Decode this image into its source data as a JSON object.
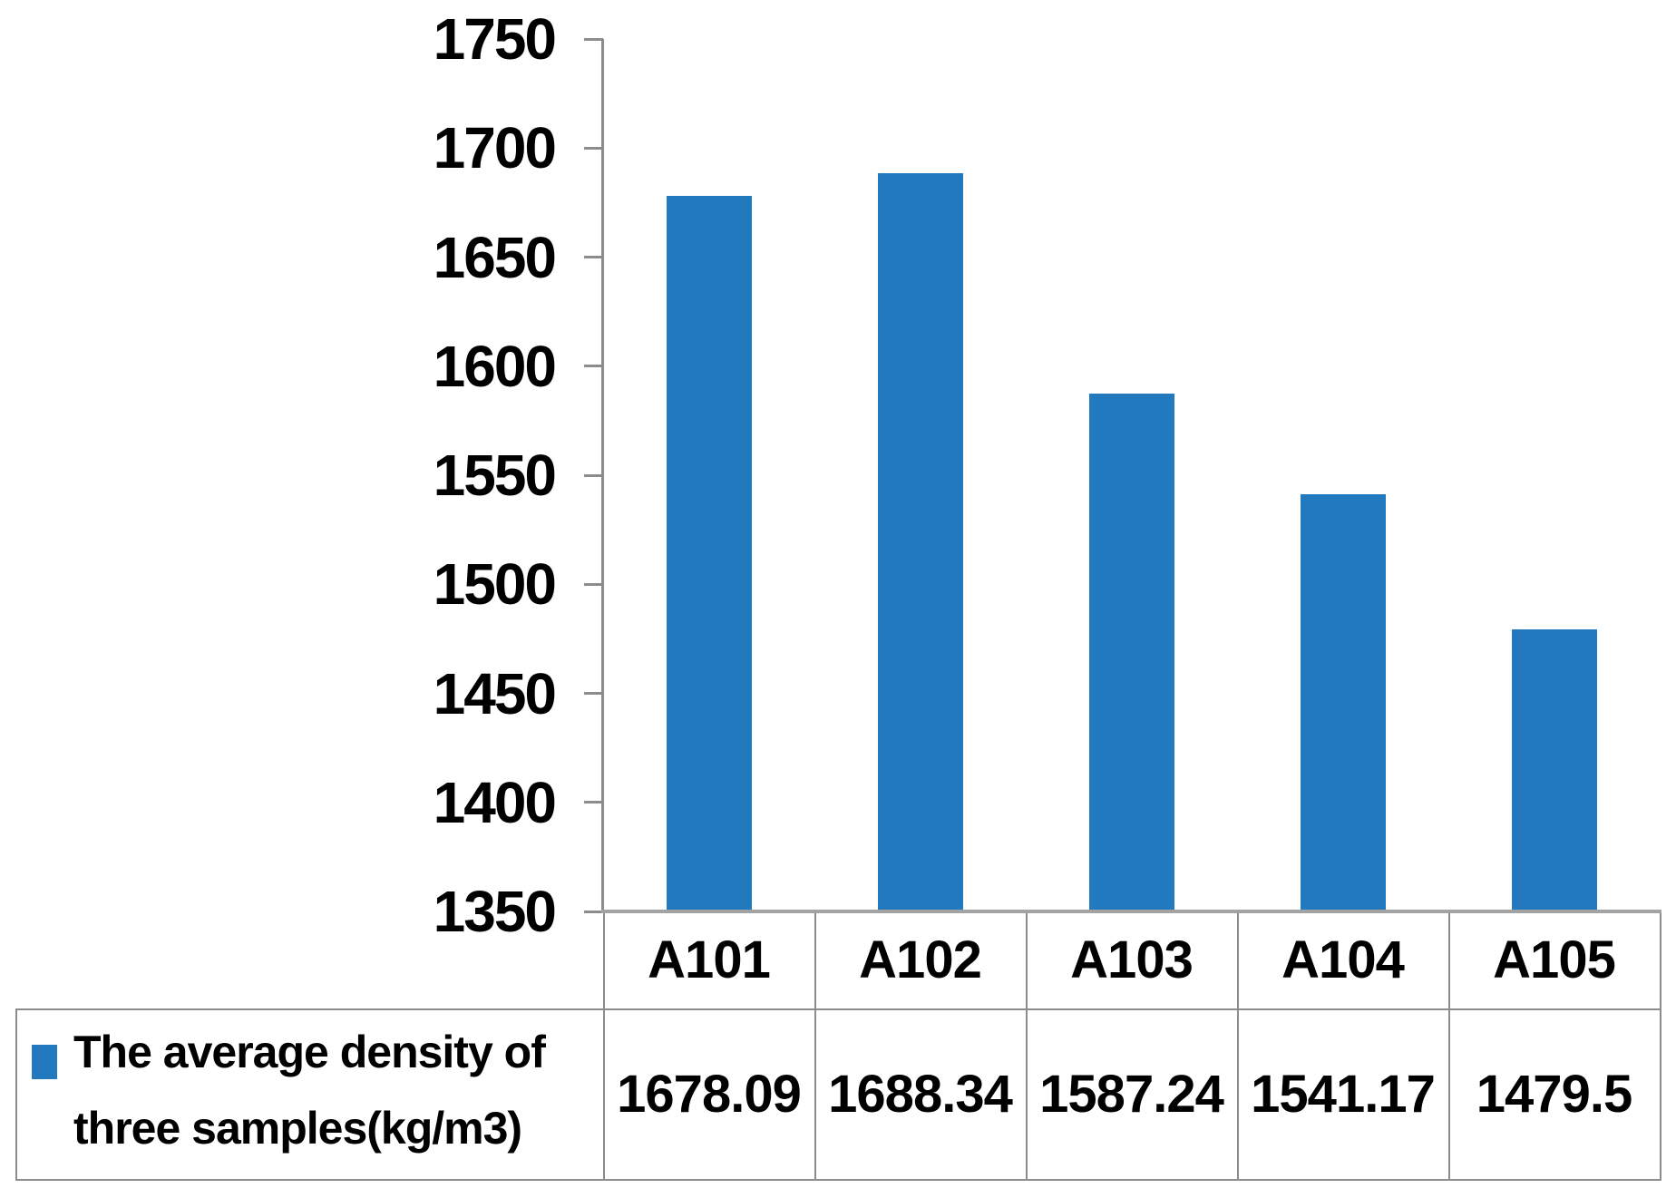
{
  "chart_data": {
    "type": "bar",
    "title": "",
    "categories": [
      "A101",
      "A102",
      "A103",
      "A104",
      "A105"
    ],
    "series": [
      {
        "name": "The average density of three samples(kg/m3)",
        "values": [
          1678.09,
          1688.34,
          1587.24,
          1541.17,
          1479.5
        ]
      }
    ],
    "value_labels": [
      "1678.09",
      "1688.34",
      "1587.24",
      "1541.17",
      "1479.5"
    ],
    "xlabel": "",
    "ylabel": "",
    "ylim": [
      1350,
      1750
    ],
    "yticks": [
      1750,
      1700,
      1650,
      1600,
      1550,
      1500,
      1450,
      1400,
      1350
    ],
    "grid": false,
    "legend_position": "bottom-left-of-data-table",
    "bar_color": "#2379BE"
  },
  "colors": {
    "bar": "#2379BE",
    "axis": "#8c8c8c",
    "baseline": "#a3a3a3",
    "table_border": "#8c8c8c",
    "text": "#000000",
    "background": "#ffffff"
  }
}
